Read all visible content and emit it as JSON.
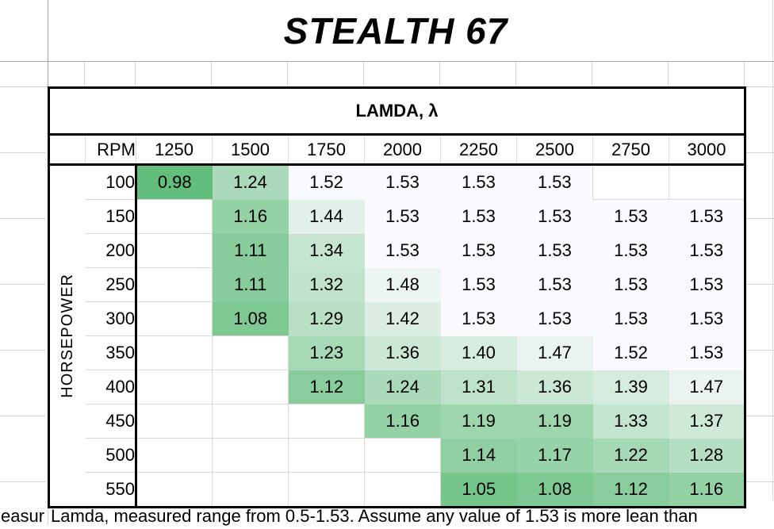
{
  "title": "STEALTH 67",
  "sheet": {
    "header": "LAMDA, λ",
    "row_axis_label": "HORSEPOWER",
    "col_axis_label": "RPM",
    "rpm_columns": [
      "1250",
      "1500",
      "1750",
      "2000",
      "2250",
      "2500",
      "2750",
      "3000"
    ],
    "rows": [
      {
        "hp": "100",
        "values": [
          0.98,
          1.24,
          1.52,
          1.53,
          1.53,
          1.53,
          null,
          null
        ]
      },
      {
        "hp": "150",
        "values": [
          null,
          1.16,
          1.44,
          1.53,
          1.53,
          1.53,
          1.53,
          1.53
        ]
      },
      {
        "hp": "200",
        "values": [
          null,
          1.11,
          1.34,
          1.53,
          1.53,
          1.53,
          1.53,
          1.53
        ]
      },
      {
        "hp": "250",
        "values": [
          null,
          1.11,
          1.32,
          1.48,
          1.53,
          1.53,
          1.53,
          1.53
        ]
      },
      {
        "hp": "300",
        "values": [
          null,
          1.08,
          1.29,
          1.42,
          1.53,
          1.53,
          1.53,
          1.53
        ]
      },
      {
        "hp": "350",
        "values": [
          null,
          null,
          1.23,
          1.36,
          1.4,
          1.47,
          1.52,
          1.53
        ]
      },
      {
        "hp": "400",
        "values": [
          null,
          null,
          1.12,
          1.24,
          1.31,
          1.36,
          1.39,
          1.47
        ]
      },
      {
        "hp": "450",
        "values": [
          null,
          null,
          null,
          1.16,
          1.19,
          1.19,
          1.33,
          1.37
        ]
      },
      {
        "hp": "500",
        "values": [
          null,
          null,
          null,
          null,
          1.14,
          1.17,
          1.22,
          1.28
        ]
      },
      {
        "hp": "550",
        "values": [
          null,
          null,
          null,
          null,
          1.05,
          1.08,
          1.12,
          1.16
        ]
      }
    ],
    "heatmap": {
      "min_value": 0.98,
      "max_value": 1.53,
      "min_color": "#63BE7B",
      "max_color": "#FAFAFE"
    }
  },
  "footer": {
    "clipped_fragment": "easur",
    "note": "Lamda, measured range from 0.5-1.53. Assume any value of 1.53 is more lean than"
  }
}
